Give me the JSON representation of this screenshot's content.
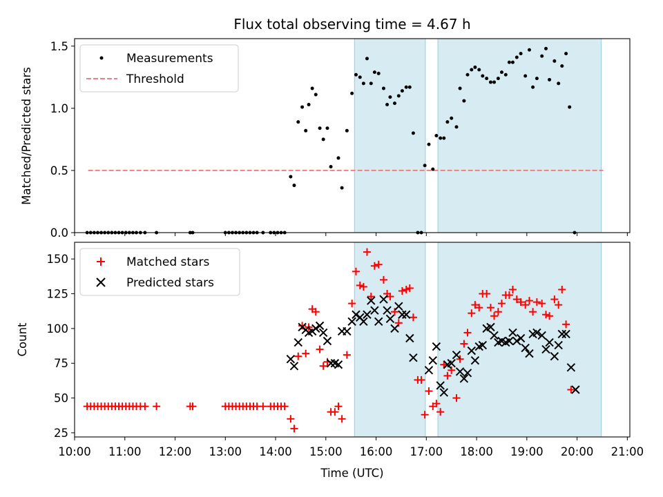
{
  "chart_data": {
    "type": "scatter",
    "title": "Flux total observing time = 4.67 h",
    "xlabel": "Time (UTC)",
    "x_ticks": [
      "10:00",
      "11:00",
      "12:00",
      "13:00",
      "14:00",
      "15:00",
      "16:00",
      "17:00",
      "18:00",
      "19:00",
      "20:00",
      "21:00"
    ],
    "xlim_hours": [
      10.0,
      21.05
    ],
    "shaded_intervals_hours": [
      [
        15.57,
        16.98
      ],
      [
        17.23,
        20.48
      ]
    ],
    "top": {
      "ylabel": "Matched/Predicted stars",
      "ylim": [
        0,
        1.56
      ],
      "y_ticks": [
        "0.0",
        "0.5",
        "1.0",
        "1.5"
      ],
      "legend": {
        "position": "top-left",
        "measurements_label": "Measurements",
        "threshold_label": "Threshold"
      },
      "threshold": {
        "value": 0.5,
        "x_range": [
          10.27,
          20.52
        ],
        "color": "#f08080"
      },
      "measurements": [
        [
          10.25,
          0
        ],
        [
          10.32,
          0
        ],
        [
          10.39,
          0
        ],
        [
          10.46,
          0
        ],
        [
          10.53,
          0
        ],
        [
          10.6,
          0
        ],
        [
          10.67,
          0
        ],
        [
          10.74,
          0
        ],
        [
          10.81,
          0
        ],
        [
          10.88,
          0
        ],
        [
          10.95,
          0
        ],
        [
          11.02,
          0
        ],
        [
          11.09,
          0
        ],
        [
          11.16,
          0
        ],
        [
          11.23,
          0
        ],
        [
          11.31,
          0
        ],
        [
          11.4,
          0
        ],
        [
          11.63,
          0
        ],
        [
          12.3,
          0
        ],
        [
          12.35,
          0
        ],
        [
          13.0,
          0
        ],
        [
          13.07,
          0
        ],
        [
          13.14,
          0
        ],
        [
          13.21,
          0
        ],
        [
          13.28,
          0
        ],
        [
          13.35,
          0
        ],
        [
          13.42,
          0
        ],
        [
          13.49,
          0
        ],
        [
          13.56,
          0
        ],
        [
          13.63,
          0
        ],
        [
          13.75,
          0
        ],
        [
          13.9,
          0
        ],
        [
          13.97,
          0
        ],
        [
          14.04,
          0
        ],
        [
          14.11,
          0
        ],
        [
          14.18,
          0
        ],
        [
          14.3,
          0.45
        ],
        [
          14.37,
          0.38
        ],
        [
          14.45,
          0.89
        ],
        [
          14.53,
          1.01
        ],
        [
          14.6,
          0.82
        ],
        [
          14.66,
          1.03
        ],
        [
          14.73,
          1.16
        ],
        [
          14.8,
          1.11
        ],
        [
          14.88,
          0.84
        ],
        [
          14.95,
          0.75
        ],
        [
          15.03,
          0.84
        ],
        [
          15.1,
          0.53
        ],
        [
          15.25,
          0.6
        ],
        [
          15.32,
          0.36
        ],
        [
          15.42,
          0.82
        ],
        [
          15.52,
          1.12
        ],
        [
          15.6,
          1.27
        ],
        [
          15.68,
          1.25
        ],
        [
          15.75,
          1.2
        ],
        [
          15.82,
          1.4
        ],
        [
          15.9,
          1.2
        ],
        [
          15.97,
          1.29
        ],
        [
          16.05,
          1.28
        ],
        [
          16.15,
          1.16
        ],
        [
          16.22,
          1.03
        ],
        [
          16.28,
          1.09
        ],
        [
          16.37,
          1.04
        ],
        [
          16.45,
          1.1
        ],
        [
          16.52,
          1.14
        ],
        [
          16.6,
          1.17
        ],
        [
          16.67,
          1.17
        ],
        [
          16.74,
          0.8
        ],
        [
          16.83,
          0
        ],
        [
          16.9,
          0
        ],
        [
          16.97,
          0.54
        ],
        [
          17.05,
          0.71
        ],
        [
          17.13,
          0.51
        ],
        [
          17.2,
          0.78
        ],
        [
          17.28,
          0.76
        ],
        [
          17.35,
          0.76
        ],
        [
          17.42,
          0.89
        ],
        [
          17.5,
          0.92
        ],
        [
          17.6,
          0.85
        ],
        [
          17.67,
          1.16
        ],
        [
          17.75,
          1.06
        ],
        [
          17.82,
          1.27
        ],
        [
          17.9,
          1.31
        ],
        [
          17.97,
          1.33
        ],
        [
          18.05,
          1.31
        ],
        [
          18.12,
          1.26
        ],
        [
          18.2,
          1.24
        ],
        [
          18.28,
          1.21
        ],
        [
          18.35,
          1.21
        ],
        [
          18.43,
          1.24
        ],
        [
          18.5,
          1.29
        ],
        [
          18.58,
          1.27
        ],
        [
          18.65,
          1.37
        ],
        [
          18.72,
          1.37
        ],
        [
          18.8,
          1.41
        ],
        [
          18.88,
          1.44
        ],
        [
          18.97,
          1.26
        ],
        [
          19.05,
          1.47
        ],
        [
          19.12,
          1.17
        ],
        [
          19.2,
          1.24
        ],
        [
          19.3,
          1.42
        ],
        [
          19.38,
          1.48
        ],
        [
          19.45,
          1.23
        ],
        [
          19.55,
          1.38
        ],
        [
          19.63,
          1.2
        ],
        [
          19.7,
          1.34
        ],
        [
          19.78,
          1.44
        ],
        [
          19.85,
          1.01
        ],
        [
          19.95,
          0
        ]
      ]
    },
    "bottom": {
      "ylabel": "Count",
      "ylim": [
        22,
        162
      ],
      "y_ticks": [
        "25",
        "50",
        "75",
        "100",
        "125",
        "150"
      ],
      "legend": {
        "position": "top-left",
        "matched_label": "Matched stars",
        "predicted_label": "Predicted stars"
      },
      "series": [
        {
          "name": "Matched stars",
          "marker": "plus",
          "color": "#ff0000",
          "points": [
            [
              10.25,
              44
            ],
            [
              10.32,
              44
            ],
            [
              10.39,
              44
            ],
            [
              10.46,
              44
            ],
            [
              10.53,
              44
            ],
            [
              10.6,
              44
            ],
            [
              10.67,
              44
            ],
            [
              10.74,
              44
            ],
            [
              10.81,
              44
            ],
            [
              10.88,
              44
            ],
            [
              10.95,
              44
            ],
            [
              11.02,
              44
            ],
            [
              11.09,
              44
            ],
            [
              11.16,
              44
            ],
            [
              11.23,
              44
            ],
            [
              11.31,
              44
            ],
            [
              11.4,
              44
            ],
            [
              11.63,
              44
            ],
            [
              12.3,
              44
            ],
            [
              12.35,
              44
            ],
            [
              13.0,
              44
            ],
            [
              13.07,
              44
            ],
            [
              13.14,
              44
            ],
            [
              13.21,
              44
            ],
            [
              13.28,
              44
            ],
            [
              13.35,
              44
            ],
            [
              13.42,
              44
            ],
            [
              13.49,
              44
            ],
            [
              13.56,
              44
            ],
            [
              13.63,
              44
            ],
            [
              13.75,
              44
            ],
            [
              13.9,
              44
            ],
            [
              13.97,
              44
            ],
            [
              14.04,
              44
            ],
            [
              14.11,
              44
            ],
            [
              14.18,
              44
            ],
            [
              14.3,
              35
            ],
            [
              14.37,
              28
            ],
            [
              14.45,
              80
            ],
            [
              14.53,
              102
            ],
            [
              14.6,
              82
            ],
            [
              14.66,
              101
            ],
            [
              14.73,
              114
            ],
            [
              14.8,
              112
            ],
            [
              14.88,
              85
            ],
            [
              14.95,
              73
            ],
            [
              15.03,
              76
            ],
            [
              15.1,
              40
            ],
            [
              15.18,
              40
            ],
            [
              15.25,
              44
            ],
            [
              15.32,
              35
            ],
            [
              15.42,
              81
            ],
            [
              15.52,
              118
            ],
            [
              15.6,
              141
            ],
            [
              15.68,
              131
            ],
            [
              15.75,
              130
            ],
            [
              15.82,
              155
            ],
            [
              15.9,
              123
            ],
            [
              15.97,
              145
            ],
            [
              16.05,
              146
            ],
            [
              16.15,
              135
            ],
            [
              16.22,
              125
            ],
            [
              16.28,
              123
            ],
            [
              16.37,
              112
            ],
            [
              16.45,
              104
            ],
            [
              16.52,
              127
            ],
            [
              16.6,
              128
            ],
            [
              16.67,
              129
            ],
            [
              16.74,
              108
            ],
            [
              16.83,
              63
            ],
            [
              16.9,
              63
            ],
            [
              16.97,
              38
            ],
            [
              17.05,
              55
            ],
            [
              17.13,
              44
            ],
            [
              17.2,
              46
            ],
            [
              17.28,
              40
            ],
            [
              17.35,
              74
            ],
            [
              17.42,
              66
            ],
            [
              17.5,
              70
            ],
            [
              17.6,
              50
            ],
            [
              17.67,
              78
            ],
            [
              17.75,
              89
            ],
            [
              17.82,
              97
            ],
            [
              17.9,
              111
            ],
            [
              17.97,
              117
            ],
            [
              18.05,
              115
            ],
            [
              18.12,
              125
            ],
            [
              18.2,
              125
            ],
            [
              18.28,
              115
            ],
            [
              18.35,
              109
            ],
            [
              18.43,
              112
            ],
            [
              18.5,
              118
            ],
            [
              18.58,
              124
            ],
            [
              18.65,
              124
            ],
            [
              18.72,
              128
            ],
            [
              18.8,
              121
            ],
            [
              18.88,
              119
            ],
            [
              18.97,
              117
            ],
            [
              19.05,
              120
            ],
            [
              19.12,
              112
            ],
            [
              19.2,
              119
            ],
            [
              19.3,
              118
            ],
            [
              19.38,
              110
            ],
            [
              19.45,
              109
            ],
            [
              19.55,
              121
            ],
            [
              19.63,
              117
            ],
            [
              19.7,
              128
            ],
            [
              19.78,
              103
            ],
            [
              19.88,
              56
            ]
          ]
        },
        {
          "name": "Predicted stars",
          "marker": "x",
          "color": "#000000",
          "points": [
            [
              14.3,
              78
            ],
            [
              14.37,
              73
            ],
            [
              14.45,
              90
            ],
            [
              14.53,
              101
            ],
            [
              14.6,
              99
            ],
            [
              14.66,
              97
            ],
            [
              14.73,
              98
            ],
            [
              14.8,
              100
            ],
            [
              14.88,
              102
            ],
            [
              14.95,
              97
            ],
            [
              15.03,
              91
            ],
            [
              15.1,
              75
            ],
            [
              15.18,
              75
            ],
            [
              15.25,
              74
            ],
            [
              15.32,
              98
            ],
            [
              15.42,
              98
            ],
            [
              15.52,
              105
            ],
            [
              15.6,
              110
            ],
            [
              15.68,
              108
            ],
            [
              15.75,
              105
            ],
            [
              15.82,
              110
            ],
            [
              15.9,
              120
            ],
            [
              15.97,
              113
            ],
            [
              16.05,
              105
            ],
            [
              16.15,
              121
            ],
            [
              16.22,
              113
            ],
            [
              16.28,
              107
            ],
            [
              16.37,
              100
            ],
            [
              16.45,
              116
            ],
            [
              16.52,
              110
            ],
            [
              16.6,
              110
            ],
            [
              16.67,
              93
            ],
            [
              16.74,
              79
            ],
            [
              17.05,
              70
            ],
            [
              17.13,
              77
            ],
            [
              17.2,
              87
            ],
            [
              17.28,
              59
            ],
            [
              17.35,
              54
            ],
            [
              17.42,
              74
            ],
            [
              17.5,
              75
            ],
            [
              17.6,
              81
            ],
            [
              17.67,
              69
            ],
            [
              17.75,
              64
            ],
            [
              17.82,
              68
            ],
            [
              17.9,
              84
            ],
            [
              17.97,
              77
            ],
            [
              18.05,
              87
            ],
            [
              18.12,
              88
            ],
            [
              18.2,
              100
            ],
            [
              18.28,
              101
            ],
            [
              18.35,
              95
            ],
            [
              18.43,
              90
            ],
            [
              18.5,
              91
            ],
            [
              18.58,
              90
            ],
            [
              18.65,
              91
            ],
            [
              18.72,
              97
            ],
            [
              18.8,
              91
            ],
            [
              18.88,
              93
            ],
            [
              18.97,
              86
            ],
            [
              19.05,
              82
            ],
            [
              19.12,
              96
            ],
            [
              19.2,
              97
            ],
            [
              19.3,
              95
            ],
            [
              19.38,
              85
            ],
            [
              19.45,
              90
            ],
            [
              19.55,
              80
            ],
            [
              19.63,
              88
            ],
            [
              19.7,
              96
            ],
            [
              19.78,
              96
            ],
            [
              19.88,
              72
            ],
            [
              19.97,
              56
            ]
          ]
        }
      ]
    }
  }
}
